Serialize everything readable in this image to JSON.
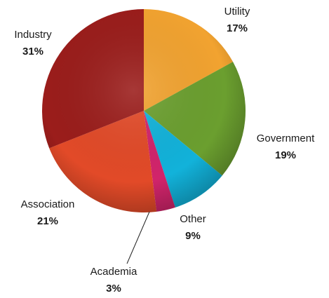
{
  "chart_data": {
    "type": "pie",
    "categories": [
      "Utility",
      "Government",
      "Other",
      "Academia",
      "Association",
      "Industry"
    ],
    "values": [
      17,
      19,
      9,
      3,
      21,
      31
    ],
    "value_labels": [
      "17%",
      "19%",
      "9%",
      "3%",
      "21%",
      "31%"
    ],
    "colors": [
      "#f2a330",
      "#6b9f2f",
      "#12b2da",
      "#d1246b",
      "#e24a28",
      "#9b1d1b"
    ]
  }
}
